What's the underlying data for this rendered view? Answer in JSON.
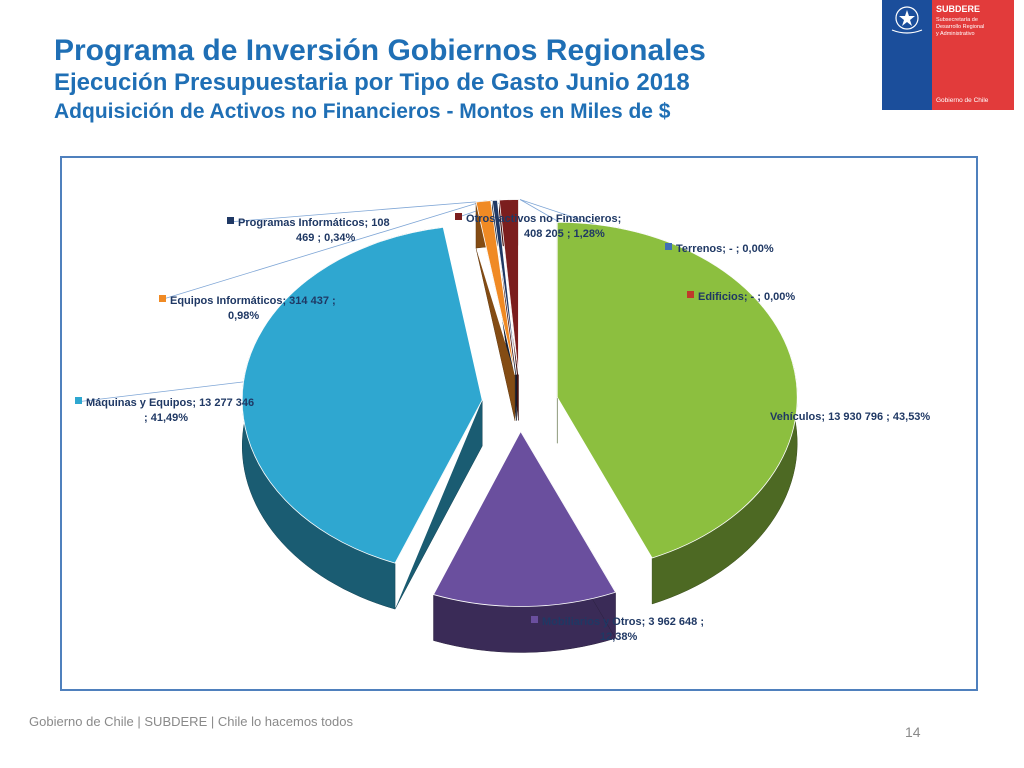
{
  "header": {
    "title": "Programa de Inversión Gobiernos Regionales",
    "subtitle": "Ejecución Presupuestaria por Tipo de Gasto Junio 2018",
    "subtitle2": "Adquisición de Activos no Financieros - Montos en Miles de $"
  },
  "logo": {
    "brand": "SUBDERE",
    "sub_line1": "Subsecretaría de",
    "sub_line2": "Desarrollo Regional",
    "sub_line3": "y Administrativo",
    "gov": "Gobierno de Chile"
  },
  "footer": {
    "text": "Gobierno de Chile | SUBDERE | Chile lo hacemos todos",
    "page": "14"
  },
  "chart_data": {
    "type": "pie",
    "style": "3D exploded",
    "slices": [
      {
        "name": "Vehículos",
        "value": 13930796,
        "percent": "43,53%",
        "label_line1": "Vehículos;  13 930 796 ; 43,53%",
        "label_line2": "",
        "color": "#8cbf3f"
      },
      {
        "name": "Mobiliarios y Otros",
        "value": 3962648,
        "percent": "12,38%",
        "label_line1": "Mobiliarios y Otros;  3 962 648 ;",
        "label_line2": "12,38%",
        "color": "#6a4f9e"
      },
      {
        "name": "Máquinas y Equipos",
        "value": 13277346,
        "percent": "41,49%",
        "label_line1": "Máquinas y Equipos;  13 277 346",
        "label_line2": "; 41,49%",
        "color": "#2fa7d0"
      },
      {
        "name": "Equipos Informáticos",
        "value": 314437,
        "percent": "0,98%",
        "label_line1": "Equipos Informáticos;  314 437 ;",
        "label_line2": "0,98%",
        "color": "#f08a24"
      },
      {
        "name": "Programas Informáticos",
        "value": 108469,
        "percent": "0,34%",
        "label_line1": "Programas Informáticos;  108",
        "label_line2": "469 ; 0,34%",
        "color": "#1f3864"
      },
      {
        "name": "Otros activos no Financieros",
        "value": 408205,
        "percent": "1,28%",
        "label_line1": "Otros activos no Financieros;",
        "label_line2": "408 205 ; 1,28%",
        "color": "#7b1e1e"
      },
      {
        "name": "Terrenos",
        "value": 0,
        "percent": "0,00%",
        "label_line1": "Terrenos;  -   ; 0,00%",
        "label_line2": "",
        "color": "#3f6fb5"
      },
      {
        "name": "Edificios",
        "value": 0,
        "percent": "0,00%",
        "label_line1": "Edificios;  -   ; 0,00%",
        "label_line2": "",
        "color": "#c0392b"
      }
    ]
  }
}
